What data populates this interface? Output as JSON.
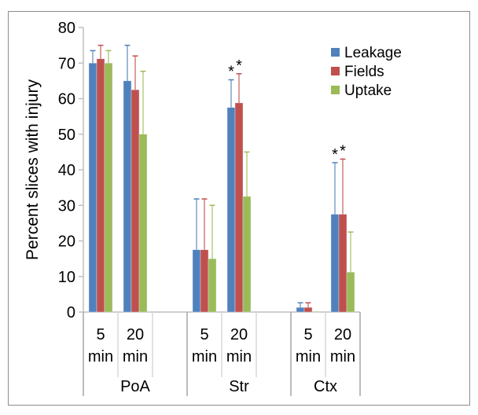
{
  "chart_data": {
    "type": "bar",
    "title": "",
    "ylabel": "Percent slices with injury",
    "xlabel": "",
    "ylim": [
      0,
      80
    ],
    "yticks": [
      "0",
      "10",
      "20",
      "30",
      "40",
      "50",
      "60",
      "70",
      "80"
    ],
    "grid": false,
    "legend_position": "top-right",
    "groups": [
      {
        "label": "PoA",
        "categories": [
          {
            "line1": "5",
            "line2": "min"
          },
          {
            "line1": "20",
            "line2": "min"
          }
        ]
      },
      {
        "label": "Str",
        "categories": [
          {
            "line1": "5",
            "line2": "min"
          },
          {
            "line1": "20",
            "line2": "min"
          }
        ]
      },
      {
        "label": "Ctx",
        "categories": [
          {
            "line1": "5",
            "line2": "min"
          },
          {
            "line1": "20",
            "line2": "min"
          }
        ]
      }
    ],
    "categories": [
      "PoA 5 min",
      "PoA 20 min",
      "Str 5 min",
      "Str 20 min",
      "Ctx 5 min",
      "Ctx 20 min"
    ],
    "series": [
      {
        "name": "Leakage",
        "color": "#4f81bd",
        "values": [
          70,
          65,
          17.5,
          57.5,
          1.3,
          27.5
        ],
        "errors": [
          3.5,
          10,
          14.3,
          7.8,
          1.3,
          14.5
        ]
      },
      {
        "name": "Fields",
        "color": "#c0504d",
        "values": [
          71.2,
          62.5,
          17.5,
          58.8,
          1.3,
          27.5
        ],
        "errors": [
          3.8,
          9.5,
          14.3,
          8.2,
          1.3,
          15.5
        ]
      },
      {
        "name": "Uptake",
        "color": "#9bbb59",
        "values": [
          70,
          50,
          15,
          32.5,
          0.2,
          11.2
        ],
        "errors": [
          3.5,
          17.7,
          15,
          12.5,
          0,
          11.3
        ]
      }
    ],
    "annotations": [
      {
        "text": "*",
        "category": "Str 20 min",
        "series": "Leakage"
      },
      {
        "text": "*",
        "category": "Str 20 min",
        "series": "Fields"
      },
      {
        "text": "*",
        "category": "Ctx 20 min",
        "series": "Leakage"
      },
      {
        "text": "*",
        "category": "Ctx 20 min",
        "series": "Fields"
      }
    ]
  }
}
